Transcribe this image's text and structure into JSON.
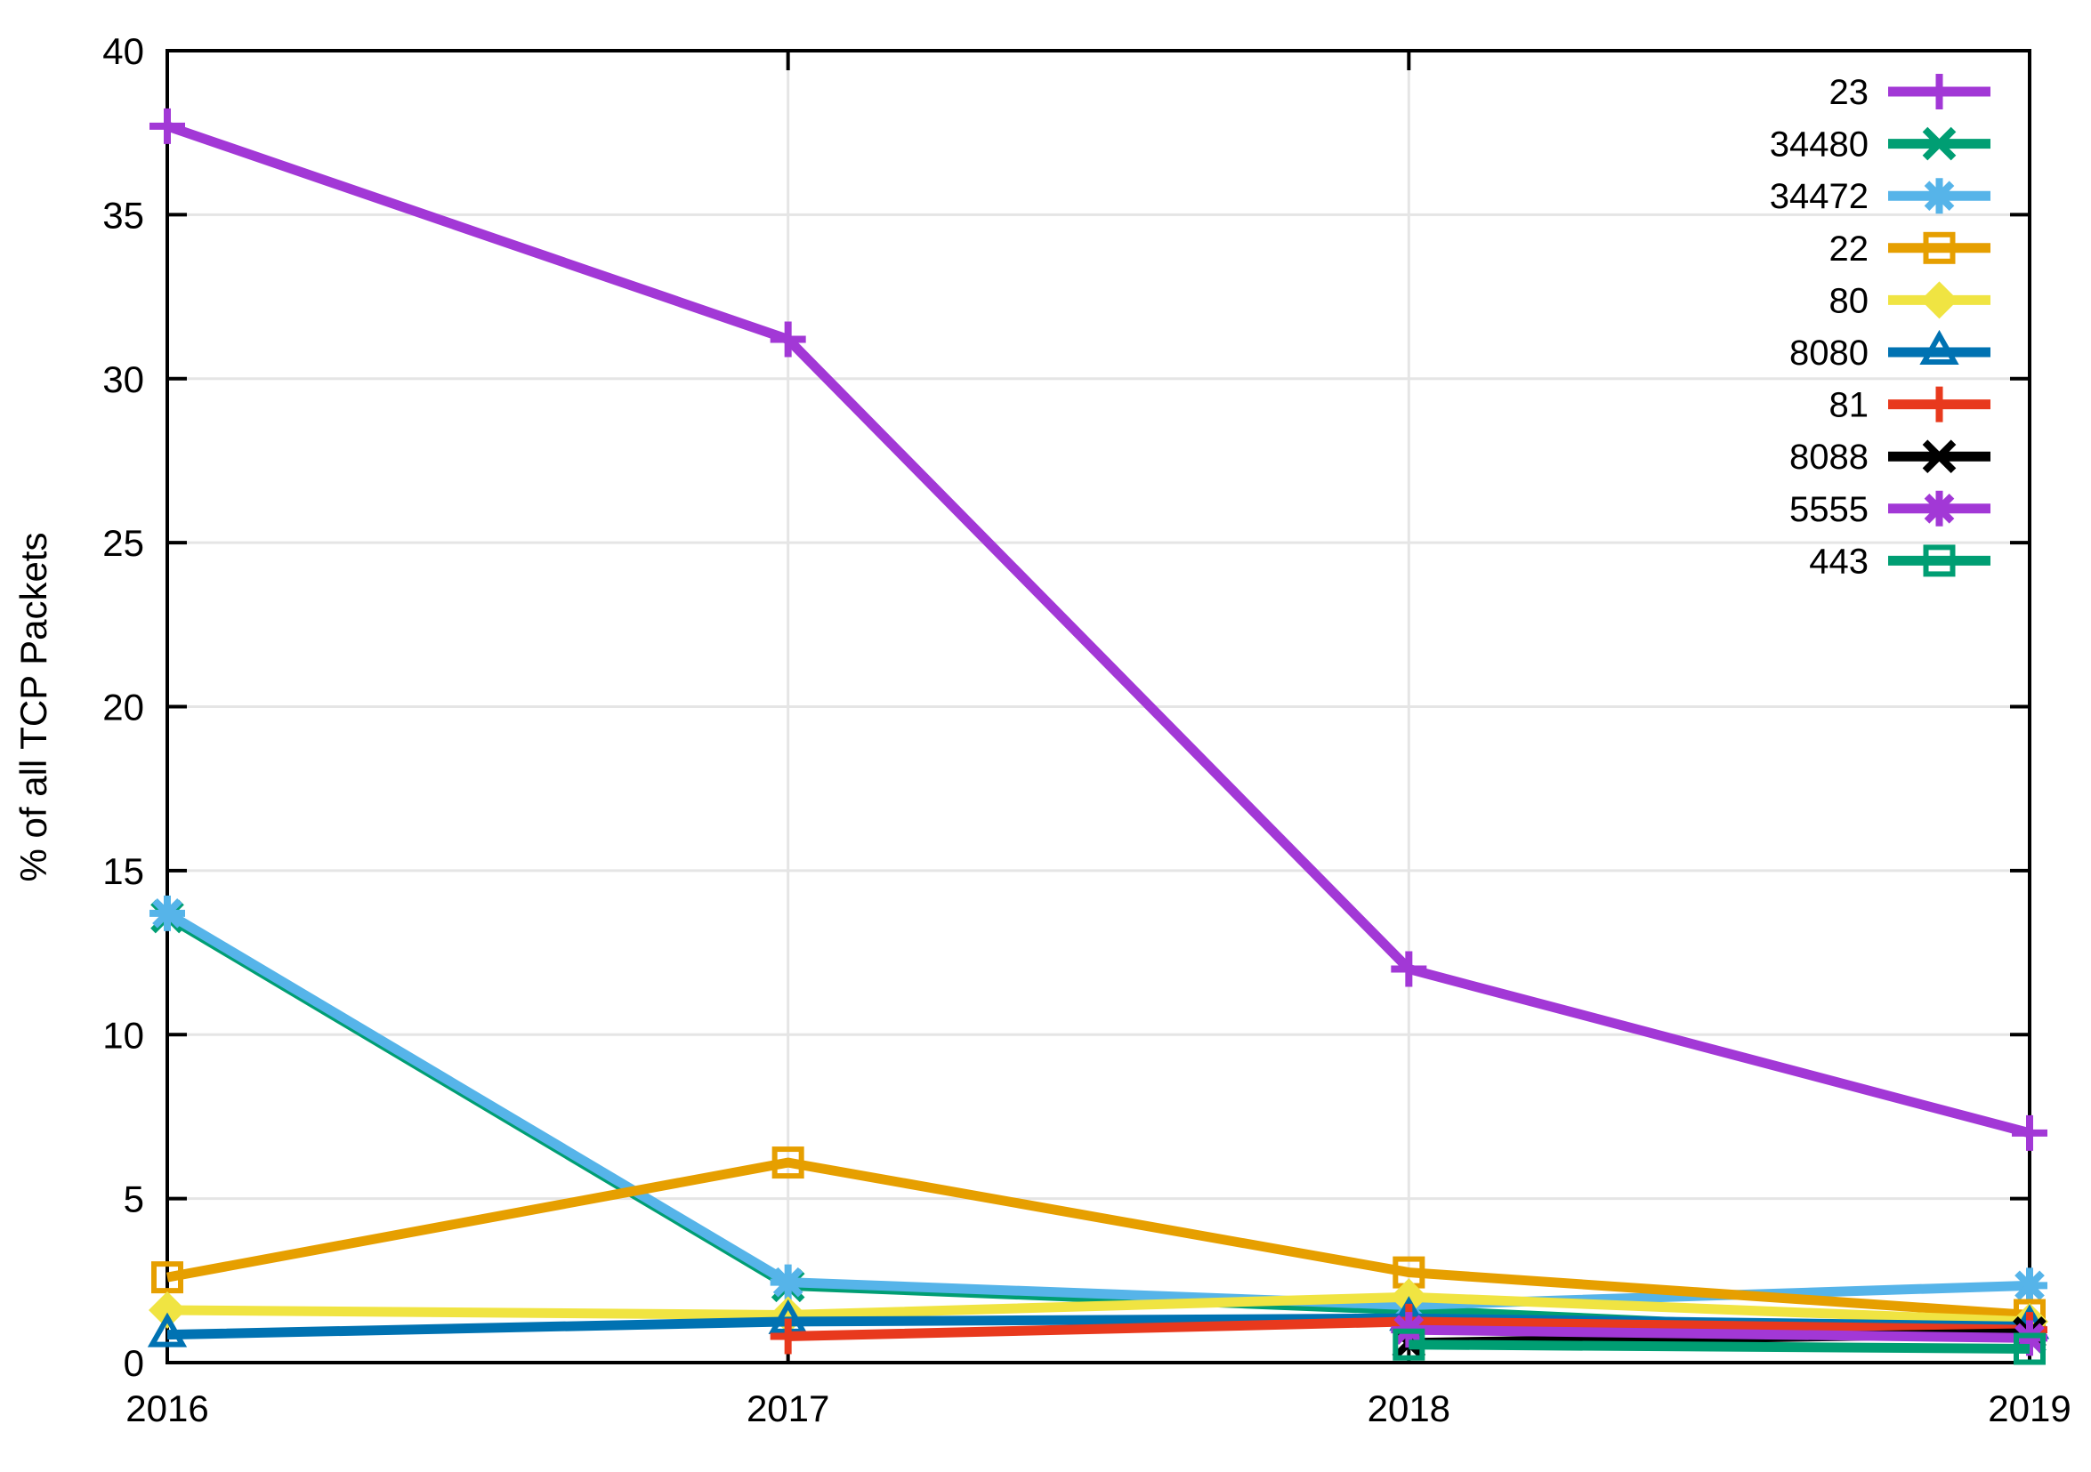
{
  "chart_data": {
    "type": "line",
    "title": "",
    "xlabel": "",
    "ylabel": "% of all TCP Packets",
    "x": [
      2016,
      2017,
      2018,
      2019
    ],
    "xlim": [
      2016,
      2019
    ],
    "ylim": [
      0,
      40
    ],
    "xticks": [
      2016,
      2017,
      2018,
      2019
    ],
    "yticks": [
      0,
      5,
      10,
      15,
      20,
      25,
      30,
      35,
      40
    ],
    "grid": true,
    "legend_position": "top-right-inside",
    "axis_color": "#000000",
    "grid_color": "#e5e5e5",
    "background_color": "#ffffff",
    "series": [
      {
        "name": "23",
        "color": "#a238d6",
        "marker": "plus",
        "values": [
          37.7,
          31.2,
          12.0,
          7.0
        ]
      },
      {
        "name": "34480",
        "color": "#009e73",
        "marker": "cross",
        "values": [
          13.6,
          2.35,
          1.6,
          0.75
        ]
      },
      {
        "name": "34472",
        "color": "#56b4e9",
        "marker": "asterisk",
        "values": [
          13.7,
          2.45,
          1.75,
          2.35
        ]
      },
      {
        "name": "22",
        "color": "#e69f00",
        "marker": "square-open",
        "values": [
          2.6,
          6.1,
          2.75,
          1.45
        ]
      },
      {
        "name": "80",
        "color": "#f0e442",
        "marker": "diamond-filled",
        "values": [
          1.6,
          1.45,
          2.0,
          1.25
        ]
      },
      {
        "name": "8080",
        "color": "#0072b2",
        "marker": "triangle-open",
        "values": [
          0.85,
          1.25,
          1.35,
          1.1
        ]
      },
      {
        "name": "81",
        "color": "#e8391d",
        "marker": "plus",
        "values": [
          null,
          0.8,
          1.25,
          1.0
        ]
      },
      {
        "name": "8088",
        "color": "#000000",
        "marker": "cross",
        "values": [
          null,
          null,
          0.6,
          0.9
        ]
      },
      {
        "name": "5555",
        "color": "#a238d6",
        "marker": "asterisk",
        "values": [
          null,
          null,
          1.0,
          0.75
        ]
      },
      {
        "name": "443",
        "color": "#009e73",
        "marker": "square-open",
        "values": [
          null,
          null,
          0.55,
          0.42
        ]
      }
    ]
  }
}
